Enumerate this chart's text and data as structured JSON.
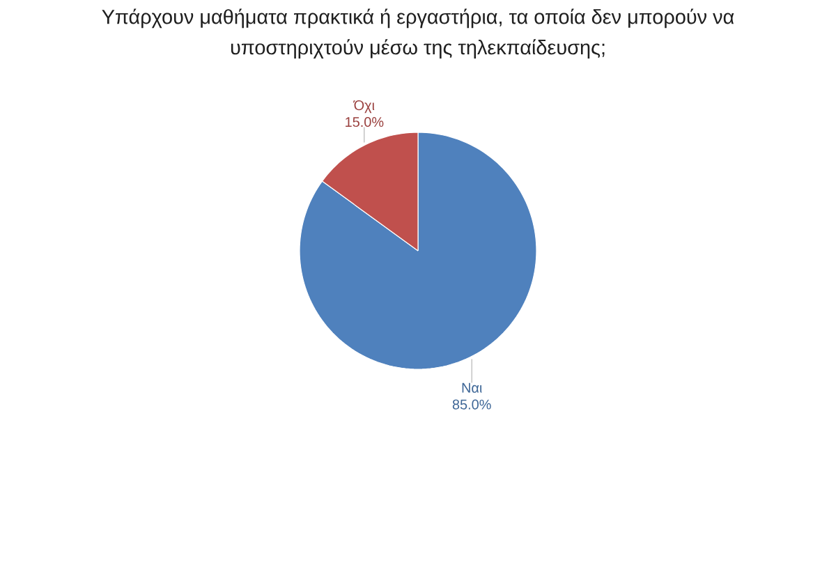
{
  "chart_data": {
    "type": "pie",
    "title": "Υπάρχουν μαθήματα πρακτικά ή εργαστήρια, τα οποία δεν μπορούν να υποστηριχτούν μέσω της τηλεκπαίδευσης;",
    "categories": [
      "Ναι",
      "Όχι"
    ],
    "values": [
      85.0,
      15.0
    ],
    "colors": [
      "#4f81bd",
      "#c0504d"
    ],
    "value_labels": [
      "85.0%",
      "15.0%"
    ]
  }
}
